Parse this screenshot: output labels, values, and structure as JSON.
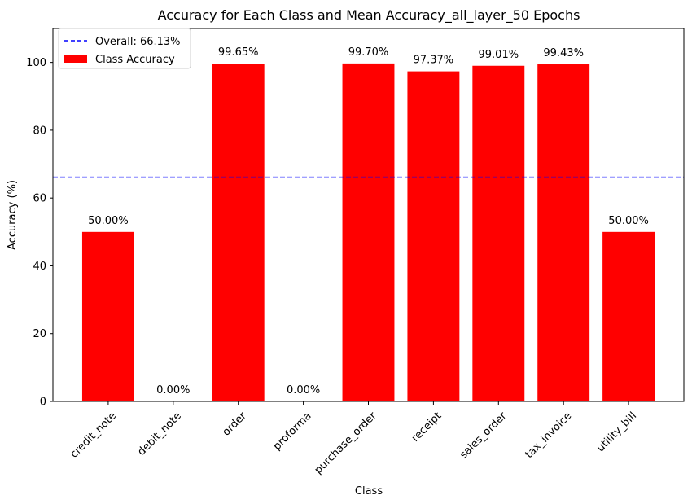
{
  "chart_data": {
    "type": "bar",
    "title": "Accuracy for Each Class and Mean Accuracy_all_layer_50 Epochs",
    "xlabel": "Class",
    "ylabel": "Accuracy (%)",
    "ylim": [
      0,
      110
    ],
    "yticks": [
      0,
      20,
      40,
      60,
      80,
      100
    ],
    "ytick_labels": [
      "0",
      "20",
      "40",
      "60",
      "80",
      "100"
    ],
    "categories": [
      "credit_note",
      "debit_note",
      "order",
      "proforma",
      "purchase_order",
      "receipt",
      "sales_order",
      "tax_invoice",
      "utility_bill"
    ],
    "series": [
      {
        "name": "Class Accuracy",
        "values": [
          50.0,
          0.0,
          99.65,
          0.0,
          99.7,
          97.37,
          99.01,
          99.43,
          50.0
        ],
        "labels": [
          "50.00%",
          "0.00%",
          "99.65%",
          "0.00%",
          "99.70%",
          "97.37%",
          "99.01%",
          "99.43%",
          "50.00%"
        ],
        "color": "#ff0000"
      }
    ],
    "reference_lines": [
      {
        "name": "Overall: 66.13%",
        "y": 66.13,
        "style": "dashed",
        "color": "#0000ff"
      }
    ],
    "legend_placement": "top-left",
    "grid": false
  }
}
